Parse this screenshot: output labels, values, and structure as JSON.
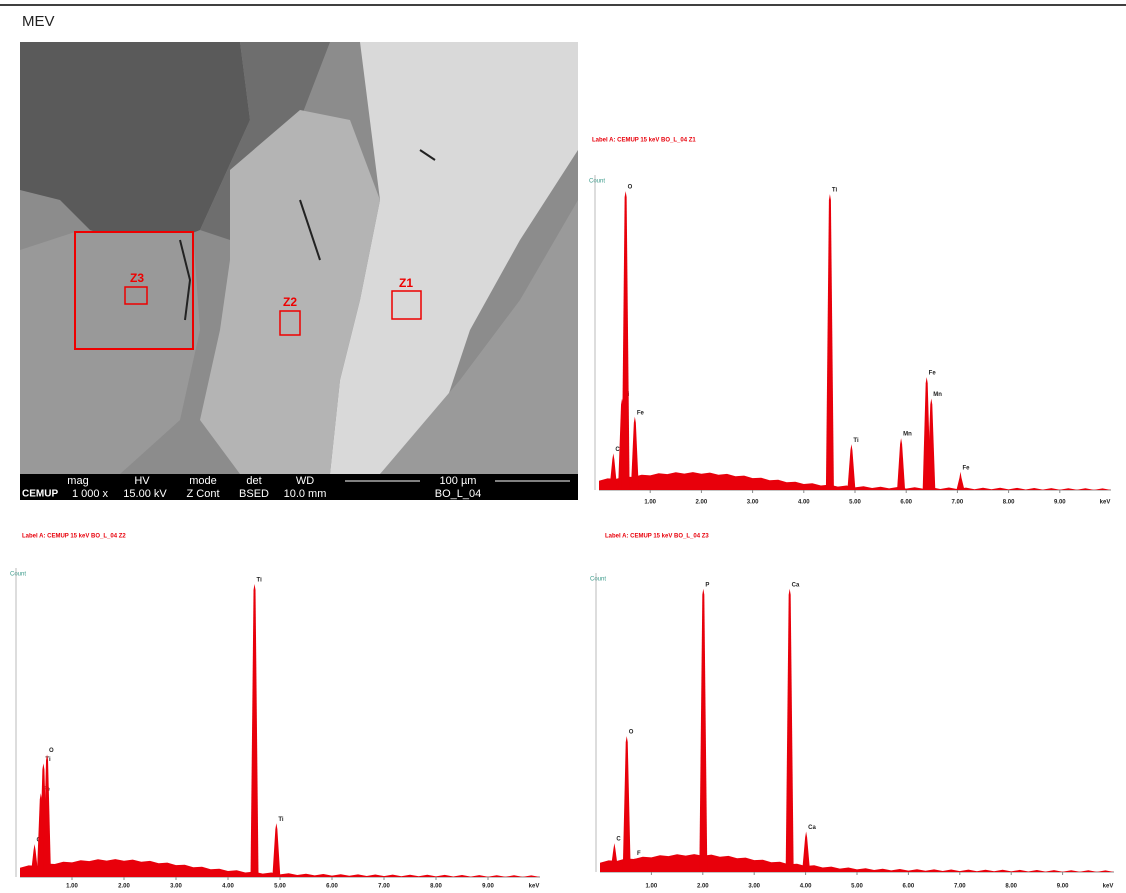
{
  "header": {
    "title": "MEV"
  },
  "sem_image": {
    "zones": [
      "Z1",
      "Z2",
      "Z3"
    ],
    "info_bar": {
      "logo": "CEMUP",
      "headers": [
        "mag",
        "HV",
        "mode",
        "det",
        "WD",
        "100 µm"
      ],
      "values": [
        "1 000 x",
        "15.00 kV",
        "Z Cont",
        "BSED",
        "10.0 mm",
        "BO_L_04"
      ]
    }
  },
  "chart_data": [
    {
      "type": "spectrum",
      "title": "Label A: CEMUP    15 keV    BO_L_04 Z1",
      "y_label": "Count",
      "x_unit": "keV",
      "color": "#e8000b",
      "x": [
        0.28,
        0.45,
        0.52,
        0.7,
        4.51,
        4.93,
        5.9,
        6.4,
        6.49,
        7.06
      ],
      "values": [
        12,
        30,
        98,
        24,
        97,
        15,
        17,
        37,
        30,
        6
      ],
      "peak_labels": [
        "C",
        "Ti",
        "O",
        "Fe",
        "Ti",
        "Ti",
        "Mn",
        "Fe",
        "Mn",
        "Fe"
      ],
      "xlim": [
        0,
        10
      ],
      "ylim": [
        0,
        100
      ],
      "xticks": [
        {
          "value": 1,
          "label": "1.00"
        },
        {
          "value": 2,
          "label": "2.00"
        },
        {
          "value": 3,
          "label": "3.00"
        },
        {
          "value": 4,
          "label": "4.00"
        },
        {
          "value": 5,
          "label": "5.00"
        },
        {
          "value": 6,
          "label": "6.00"
        },
        {
          "value": 7,
          "label": "7.00"
        },
        {
          "value": 8,
          "label": "8.00"
        },
        {
          "value": 9,
          "label": "9.00"
        }
      ]
    },
    {
      "type": "spectrum",
      "title": "Label A: CEMUP    15 keV    BO_L_04 Z2",
      "y_label": "Count",
      "x_unit": "keV",
      "color": "#e8000b",
      "x": [
        0.28,
        0.4,
        0.45,
        0.52,
        4.51,
        4.93
      ],
      "values": [
        11,
        28,
        38,
        41,
        98,
        18
      ],
      "peak_labels": [
        "C",
        "Fe",
        "Ti",
        "O",
        "Ti",
        "Ti"
      ],
      "xlim": [
        0,
        10
      ],
      "ylim": [
        0,
        100
      ],
      "xticks": [
        {
          "value": 1,
          "label": "1.00"
        },
        {
          "value": 2,
          "label": "2.00"
        },
        {
          "value": 3,
          "label": "3.00"
        },
        {
          "value": 4,
          "label": "4.00"
        },
        {
          "value": 5,
          "label": "5.00"
        },
        {
          "value": 6,
          "label": "6.00"
        },
        {
          "value": 7,
          "label": "7.00"
        },
        {
          "value": 8,
          "label": "8.00"
        },
        {
          "value": 9,
          "label": "9.00"
        }
      ]
    },
    {
      "type": "spectrum",
      "title": "Label A: CEMUP    15 keV    BO_L_04 Z3",
      "y_label": "Count",
      "x_unit": "keV",
      "color": "#e8000b",
      "x": [
        0.28,
        0.52,
        0.68,
        2.01,
        3.69,
        4.01
      ],
      "values": [
        10,
        47,
        5,
        98,
        98,
        14
      ],
      "peak_labels": [
        "C",
        "O",
        "F",
        "P",
        "Ca",
        "Ca"
      ],
      "xlim": [
        0,
        10
      ],
      "ylim": [
        0,
        100
      ],
      "xticks": [
        {
          "value": 1,
          "label": "1.00"
        },
        {
          "value": 2,
          "label": "2.00"
        },
        {
          "value": 3,
          "label": "3.00"
        },
        {
          "value": 4,
          "label": "4.00"
        },
        {
          "value": 5,
          "label": "5.00"
        },
        {
          "value": 6,
          "label": "6.00"
        },
        {
          "value": 7,
          "label": "7.00"
        },
        {
          "value": 8,
          "label": "8.00"
        },
        {
          "value": 9,
          "label": "9.00"
        }
      ]
    }
  ]
}
